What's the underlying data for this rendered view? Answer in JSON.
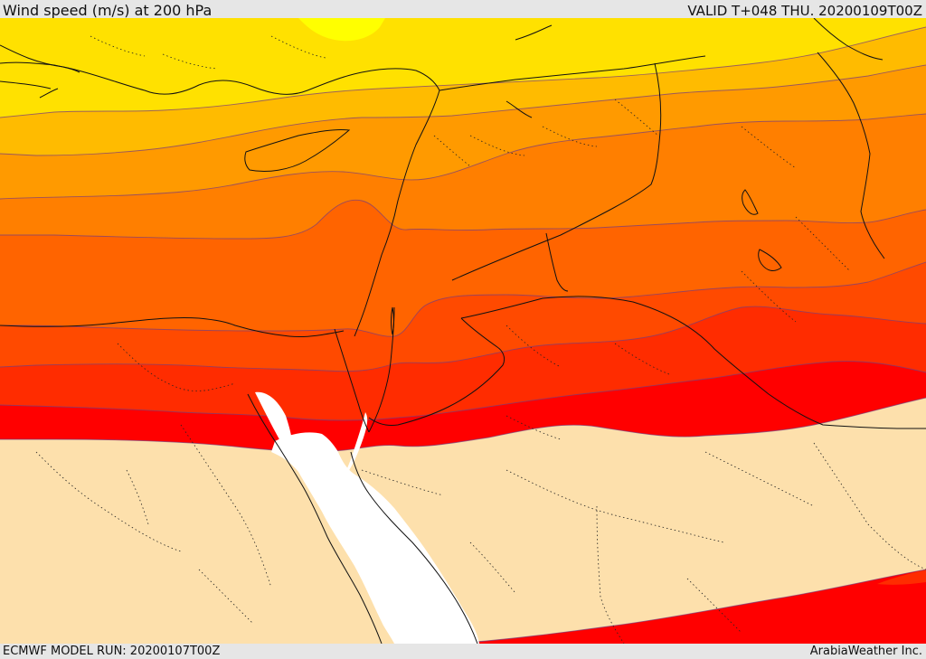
{
  "header": {
    "title": "Wind speed (m/s) at 200 hPa",
    "valid": "VALID T+048 THU. 20200109T00Z"
  },
  "footer": {
    "model_run": "ECMWF MODEL RUN: 20200107T00Z",
    "credit": "ArabiaWeather Inc."
  },
  "colors": {
    "band_1": "#ffff00",
    "band_2": "#ffe100",
    "band_3": "#ffbb00",
    "band_4": "#ff9a00",
    "band_5": "#ff7f00",
    "band_6": "#ff6400",
    "band_7": "#ff4a00",
    "band_8": "#ff2c00",
    "band_9": "#ff0000",
    "calm_land": "#fde0ac",
    "sea": "#ffffff",
    "header_bg": "#e6e6e6"
  }
}
